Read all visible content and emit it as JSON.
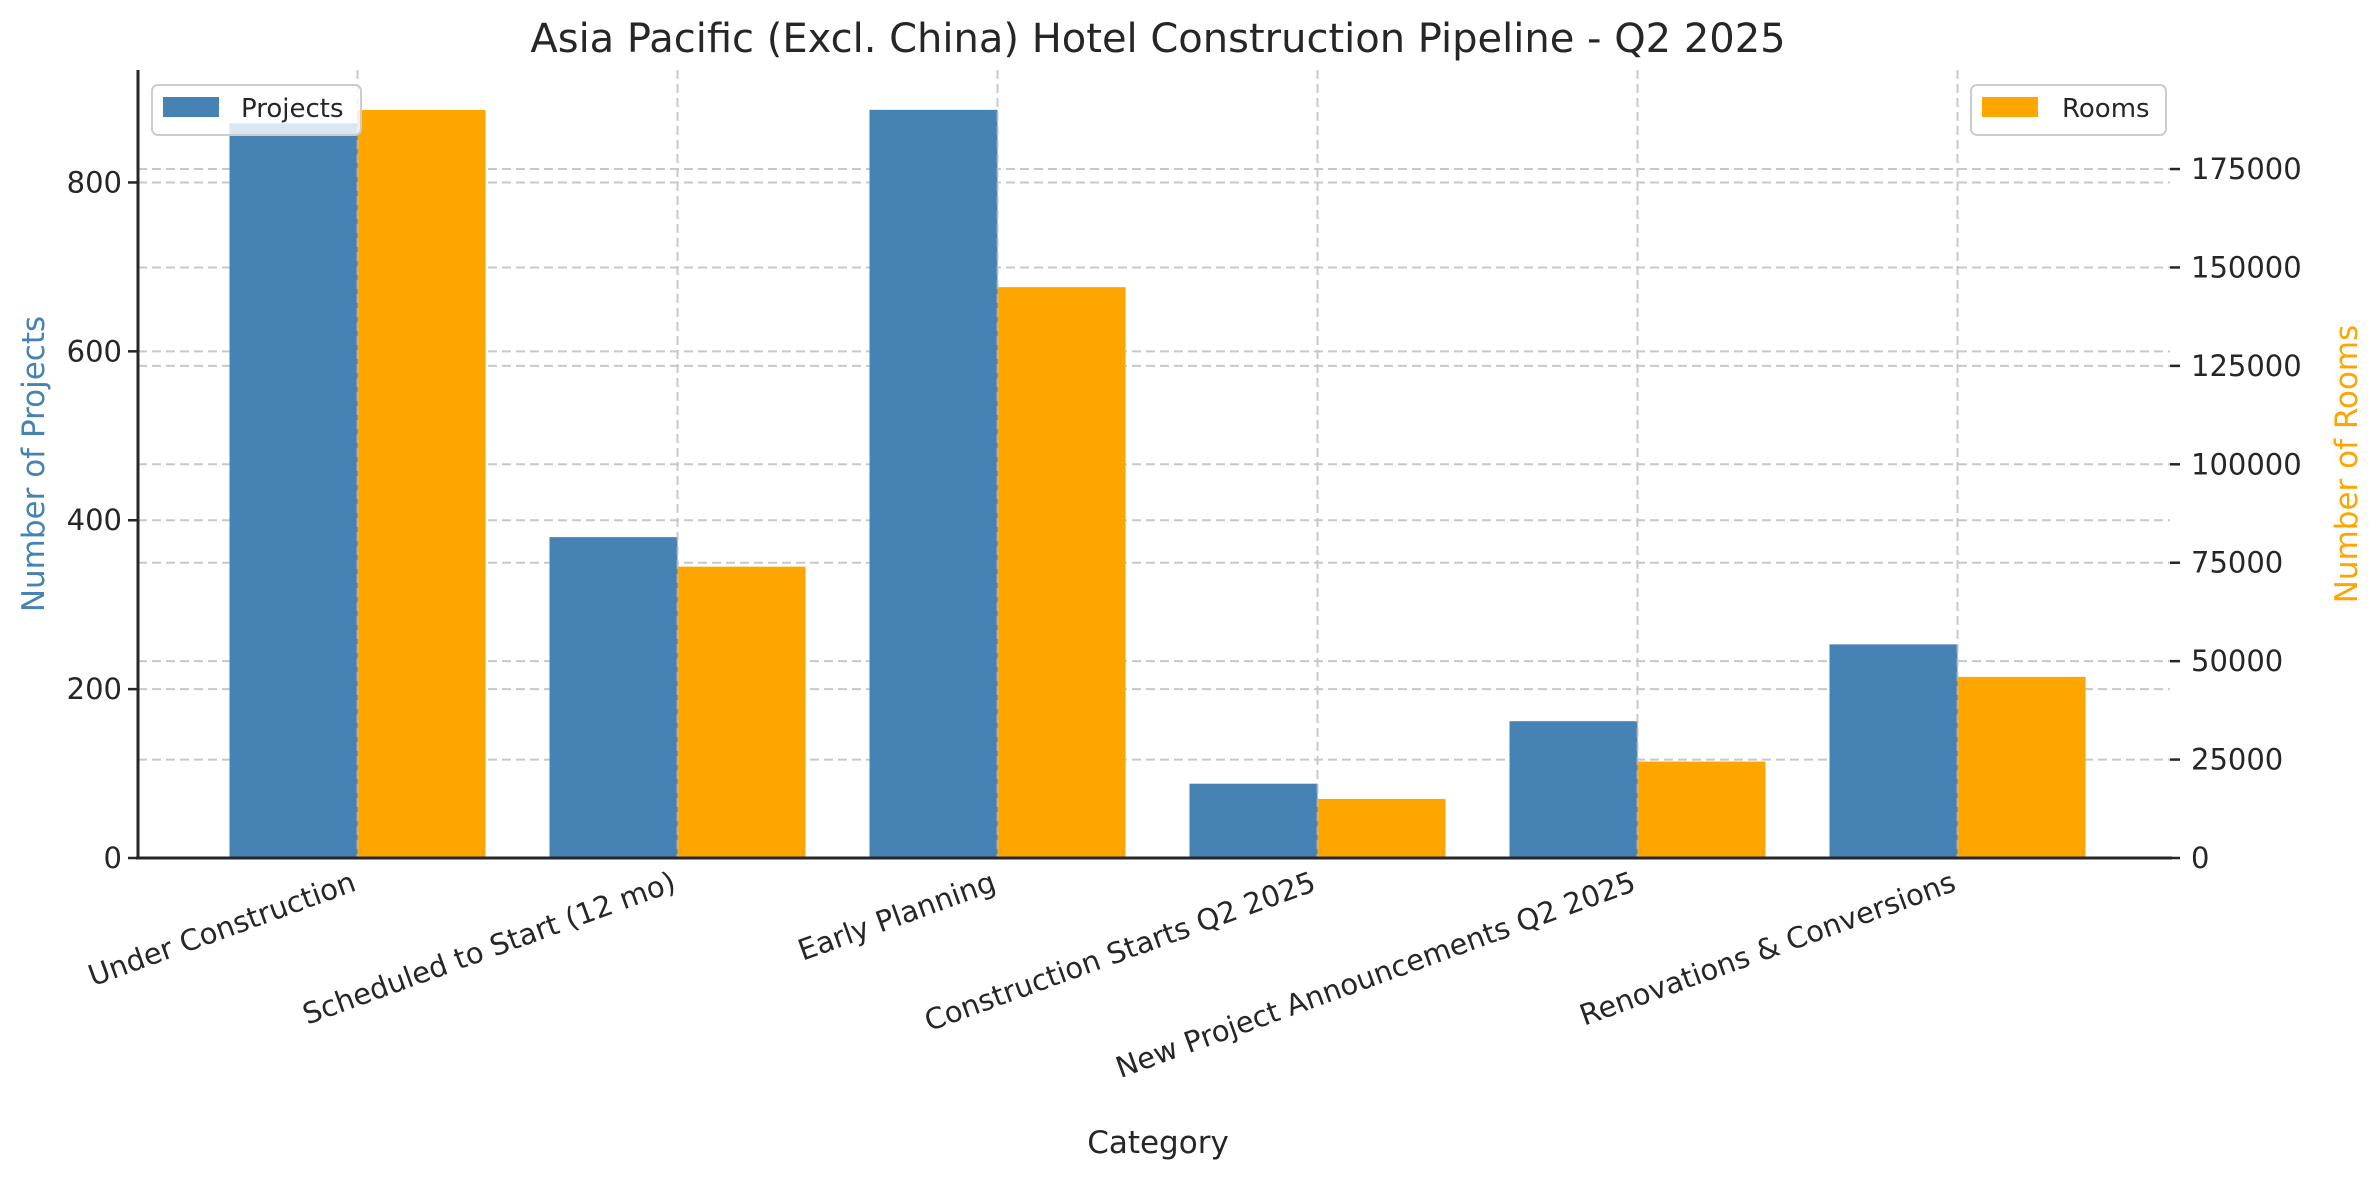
{
  "chart_data": {
    "type": "bar",
    "title": "Asia Pacific (Excl. China) Hotel Construction Pipeline - Q2 2025",
    "xlabel": "Category",
    "ylabel": "Number of Projects",
    "ylabel_right": "Number of Rooms",
    "categories": [
      "Under Construction",
      "Scheduled to Start (12 mo)",
      "Early Planning",
      "Construction Starts Q2 2025",
      "New Project Announcements Q2 2025",
      "Renovations & Conversions"
    ],
    "series": [
      {
        "name": "Projects",
        "axis": "left",
        "color": "#4682b4",
        "values": [
          870,
          380,
          886,
          88,
          162,
          253
        ]
      },
      {
        "name": "Rooms",
        "axis": "right",
        "color": "#ffa500",
        "values": [
          190000,
          74000,
          145000,
          15000,
          24500,
          46000
        ]
      }
    ],
    "ylim": [
      0,
      932
    ],
    "ylim_right": [
      0,
      199900
    ],
    "yticks": [
      0,
      200,
      400,
      600,
      800
    ],
    "yticks_right": [
      0,
      25000,
      50000,
      75000,
      100000,
      125000,
      150000,
      175000
    ],
    "grid": true,
    "grid_style": "dashed",
    "legend": [
      {
        "label": "Projects",
        "position": "upper left"
      },
      {
        "label": "Rooms",
        "position": "upper right"
      }
    ],
    "xtick_rotation": 20,
    "colors": {
      "left_axis_label": "#4682b4",
      "right_axis_label": "#ffa500",
      "text": "#262626"
    }
  }
}
